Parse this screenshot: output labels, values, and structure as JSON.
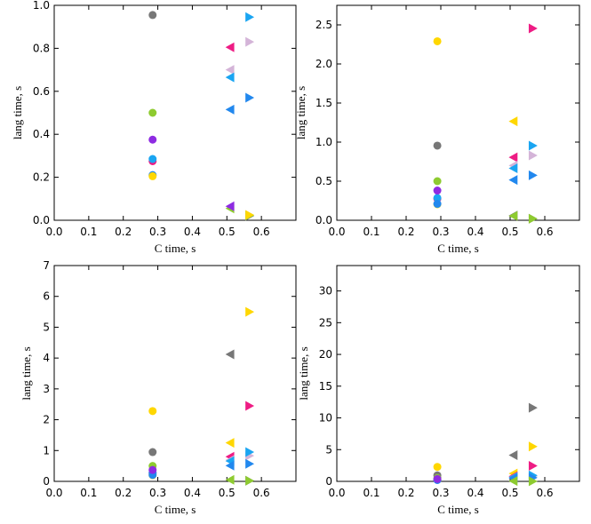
{
  "figure": {
    "title": ""
  },
  "chart_data": [
    {
      "type": "scatter",
      "title": "",
      "xlabel": "C time, s",
      "ylabel": "lang time, s",
      "xlim": [
        0,
        0.7
      ],
      "ylim": [
        0,
        1.0
      ],
      "xticks": [
        "0.0",
        "0.1",
        "0.2",
        "0.3",
        "0.4",
        "0.5",
        "0.6"
      ],
      "yticks": [
        "0.0",
        "0.2",
        "0.4",
        "0.6",
        "0.8",
        "1.0"
      ],
      "series": [
        {
          "name": "gray",
          "color": "#777777",
          "points": [
            [
              0.285,
              0.955,
              "circle"
            ],
            [
              0.565,
              0.02,
              "triangle-right"
            ]
          ]
        },
        {
          "name": "pink",
          "color": "#ee1c84",
          "points": [
            [
              0.285,
              0.275,
              "circle"
            ],
            [
              0.51,
              0.805,
              "triangle-left"
            ]
          ]
        },
        {
          "name": "thistle",
          "color": "#d4b4d8",
          "points": [
            [
              0.51,
              0.7,
              "triangle-left"
            ],
            [
              0.565,
              0.83,
              "triangle-right"
            ]
          ]
        },
        {
          "name": "deepskyblue",
          "color": "#1aa5f2",
          "points": [
            [
              0.285,
              0.285,
              "circle"
            ],
            [
              0.51,
              0.665,
              "triangle-left"
            ],
            [
              0.565,
              0.945,
              "triangle-right"
            ]
          ]
        },
        {
          "name": "dodgerblue",
          "color": "#2288ee",
          "points": [
            [
              0.285,
              0.21,
              "circle"
            ],
            [
              0.51,
              0.515,
              "triangle-left"
            ],
            [
              0.565,
              0.57,
              "triangle-right"
            ]
          ]
        },
        {
          "name": "yellowgreen",
          "color": "#8ecb30",
          "points": [
            [
              0.285,
              0.5,
              "circle"
            ],
            [
              0.51,
              0.055,
              "triangle-left"
            ],
            [
              0.565,
              0.022,
              "triangle-right"
            ]
          ]
        },
        {
          "name": "purple",
          "color": "#8e2be2",
          "points": [
            [
              0.285,
              0.375,
              "circle"
            ],
            [
              0.51,
              0.065,
              "triangle-left"
            ]
          ]
        },
        {
          "name": "gold",
          "color": "#ffd700",
          "points": [
            [
              0.285,
              0.205,
              "circle"
            ],
            [
              0.565,
              0.025,
              "triangle-right"
            ]
          ]
        }
      ]
    },
    {
      "type": "scatter",
      "title": "",
      "xlabel": "C time, s",
      "ylabel": "lang time, s",
      "xlim": [
        0,
        0.7
      ],
      "ylim": [
        0,
        2.75
      ],
      "xticks": [
        "0.0",
        "0.1",
        "0.2",
        "0.3",
        "0.4",
        "0.5",
        "0.6"
      ],
      "yticks": [
        "0.0",
        "0.5",
        "1.0",
        "1.5",
        "2.0",
        "2.5"
      ],
      "series": [
        {
          "name": "gray",
          "color": "#777777",
          "points": [
            [
              0.29,
              0.955,
              "circle"
            ],
            [
              0.51,
              0.06,
              "triangle-left"
            ],
            [
              0.565,
              0.02,
              "triangle-right"
            ]
          ]
        },
        {
          "name": "gold",
          "color": "#ffd700",
          "points": [
            [
              0.29,
              2.29,
              "circle"
            ],
            [
              0.51,
              1.265,
              "triangle-left"
            ],
            [
              0.29,
              0.205,
              "circle"
            ]
          ]
        },
        {
          "name": "pink",
          "color": "#ee1c84",
          "points": [
            [
              0.29,
              0.275,
              "circle"
            ],
            [
              0.51,
              0.805,
              "triangle-left"
            ],
            [
              0.565,
              2.455,
              "triangle-right"
            ]
          ]
        },
        {
          "name": "thistle",
          "color": "#d4b4d8",
          "points": [
            [
              0.51,
              0.7,
              "triangle-left"
            ],
            [
              0.565,
              0.83,
              "triangle-right"
            ]
          ]
        },
        {
          "name": "deepskyblue",
          "color": "#1aa5f2",
          "points": [
            [
              0.29,
              0.285,
              "circle"
            ],
            [
              0.51,
              0.665,
              "triangle-left"
            ],
            [
              0.565,
              0.955,
              "triangle-right"
            ]
          ]
        },
        {
          "name": "dodgerblue",
          "color": "#2288ee",
          "points": [
            [
              0.29,
              0.21,
              "circle"
            ],
            [
              0.51,
              0.515,
              "triangle-left"
            ],
            [
              0.565,
              0.575,
              "triangle-right"
            ]
          ]
        },
        {
          "name": "yellowgreen",
          "color": "#8ecb30",
          "points": [
            [
              0.29,
              0.5,
              "circle"
            ],
            [
              0.51,
              0.055,
              "triangle-left"
            ],
            [
              0.565,
              0.02,
              "triangle-right"
            ]
          ]
        },
        {
          "name": "purple",
          "color": "#8e2be2",
          "points": [
            [
              0.29,
              0.38,
              "circle"
            ]
          ]
        }
      ]
    },
    {
      "type": "scatter",
      "title": "",
      "xlabel": "C time, s",
      "ylabel": "lang time, s",
      "xlim": [
        0,
        0.7
      ],
      "ylim": [
        0,
        7.0
      ],
      "xticks": [
        "0.0",
        "0.1",
        "0.2",
        "0.3",
        "0.4",
        "0.5",
        "0.6"
      ],
      "yticks": [
        "0",
        "1",
        "2",
        "3",
        "4",
        "5",
        "6",
        "7"
      ],
      "series": [
        {
          "name": "gray",
          "color": "#777777",
          "points": [
            [
              0.285,
              0.95,
              "circle"
            ],
            [
              0.51,
              4.12,
              "triangle-left"
            ],
            [
              0.565,
              0.02,
              "triangle-right"
            ]
          ]
        },
        {
          "name": "gold",
          "color": "#ffd700",
          "points": [
            [
              0.285,
              2.28,
              "circle"
            ],
            [
              0.51,
              1.25,
              "triangle-left"
            ],
            [
              0.565,
              5.5,
              "triangle-right"
            ],
            [
              0.285,
              0.2,
              "circle"
            ]
          ]
        },
        {
          "name": "pink",
          "color": "#ee1c84",
          "points": [
            [
              0.285,
              0.27,
              "circle"
            ],
            [
              0.51,
              0.8,
              "triangle-left"
            ],
            [
              0.565,
              2.45,
              "triangle-right"
            ]
          ]
        },
        {
          "name": "thistle",
          "color": "#d4b4d8",
          "points": [
            [
              0.51,
              0.69,
              "triangle-left"
            ],
            [
              0.565,
              0.83,
              "triangle-right"
            ]
          ]
        },
        {
          "name": "deepskyblue",
          "color": "#1aa5f2",
          "points": [
            [
              0.285,
              0.28,
              "circle"
            ],
            [
              0.51,
              0.66,
              "triangle-left"
            ],
            [
              0.565,
              0.95,
              "triangle-right"
            ]
          ]
        },
        {
          "name": "dodgerblue",
          "color": "#2288ee",
          "points": [
            [
              0.285,
              0.21,
              "circle"
            ],
            [
              0.51,
              0.51,
              "triangle-left"
            ],
            [
              0.565,
              0.57,
              "triangle-right"
            ]
          ]
        },
        {
          "name": "yellowgreen",
          "color": "#8ecb30",
          "points": [
            [
              0.285,
              0.5,
              "circle"
            ],
            [
              0.51,
              0.05,
              "triangle-left"
            ],
            [
              0.565,
              0.02,
              "triangle-right"
            ]
          ]
        },
        {
          "name": "purple",
          "color": "#8e2be2",
          "points": [
            [
              0.285,
              0.37,
              "circle"
            ]
          ]
        }
      ]
    },
    {
      "type": "scatter",
      "title": "",
      "xlabel": "C time, s",
      "ylabel": "lang time, s",
      "xlim": [
        0,
        0.7
      ],
      "ylim": [
        0,
        34
      ],
      "xticks": [
        "0.0",
        "0.1",
        "0.2",
        "0.3",
        "0.4",
        "0.5",
        "0.6"
      ],
      "yticks": [
        "0",
        "5",
        "10",
        "15",
        "20",
        "25",
        "30"
      ],
      "series": [
        {
          "name": "gray",
          "color": "#777777",
          "points": [
            [
              0.29,
              0.95,
              "circle"
            ],
            [
              0.51,
              4.12,
              "triangle-left"
            ],
            [
              0.565,
              11.6,
              "triangle-right"
            ]
          ]
        },
        {
          "name": "gold",
          "color": "#ffd700",
          "points": [
            [
              0.29,
              2.28,
              "circle"
            ],
            [
              0.51,
              1.25,
              "triangle-left"
            ],
            [
              0.565,
              5.5,
              "triangle-right"
            ]
          ]
        },
        {
          "name": "pink",
          "color": "#ee1c84",
          "points": [
            [
              0.29,
              0.27,
              "circle"
            ],
            [
              0.51,
              0.8,
              "triangle-left"
            ],
            [
              0.565,
              2.45,
              "triangle-right"
            ]
          ]
        },
        {
          "name": "thistle",
          "color": "#d4b4d8",
          "points": [
            [
              0.51,
              0.69,
              "triangle-left"
            ],
            [
              0.565,
              0.83,
              "triangle-right"
            ]
          ]
        },
        {
          "name": "deepskyblue",
          "color": "#1aa5f2",
          "points": [
            [
              0.29,
              0.28,
              "circle"
            ],
            [
              0.51,
              0.66,
              "triangle-left"
            ],
            [
              0.565,
              0.95,
              "triangle-right"
            ]
          ]
        },
        {
          "name": "dodgerblue",
          "color": "#2288ee",
          "points": [
            [
              0.29,
              0.21,
              "circle"
            ],
            [
              0.51,
              0.51,
              "triangle-left"
            ],
            [
              0.565,
              0.57,
              "triangle-right"
            ]
          ]
        },
        {
          "name": "yellowgreen",
          "color": "#8ecb30",
          "points": [
            [
              0.29,
              0.5,
              "circle"
            ],
            [
              0.51,
              0.05,
              "triangle-left"
            ],
            [
              0.565,
              0.02,
              "triangle-right"
            ]
          ]
        },
        {
          "name": "purple",
          "color": "#8e2be2",
          "points": [
            [
              0.29,
              0.37,
              "circle"
            ]
          ]
        }
      ]
    }
  ]
}
